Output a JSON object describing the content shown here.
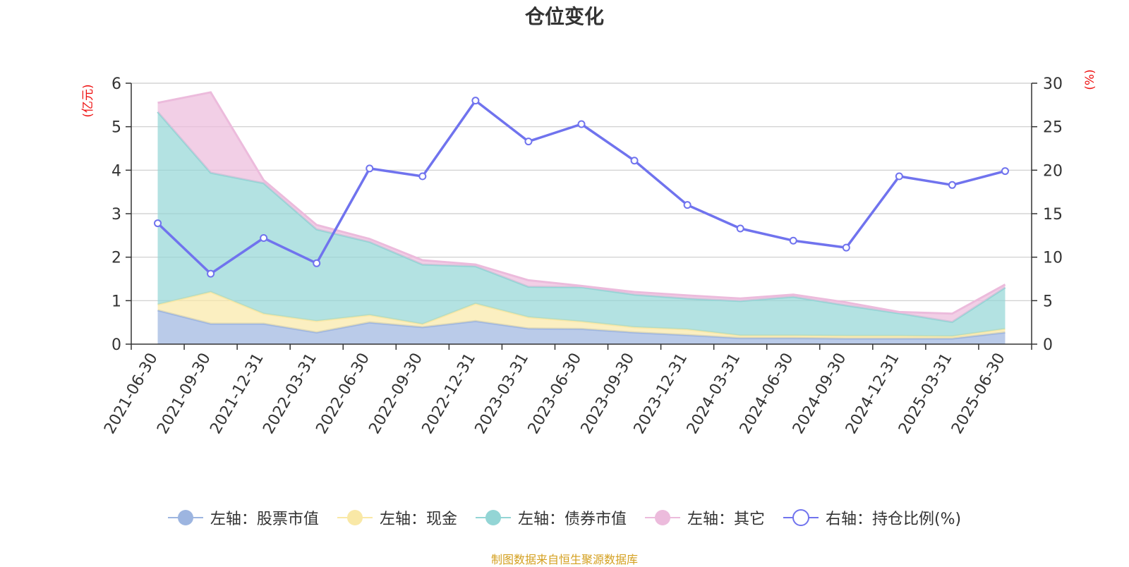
{
  "chart_data": {
    "type": "area",
    "title": "仓位变化",
    "categories": [
      "2021-06-30",
      "2021-09-30",
      "2021-12-31",
      "2022-03-31",
      "2022-06-30",
      "2022-09-30",
      "2022-12-31",
      "2023-03-31",
      "2023-06-30",
      "2023-09-30",
      "2023-12-31",
      "2024-03-31",
      "2024-06-30",
      "2024-09-30",
      "2024-12-31",
      "2025-03-31",
      "2025-06-30"
    ],
    "left_axis": {
      "unit": "(亿元)",
      "ylim": [
        0,
        6
      ],
      "ticks": [
        "0",
        "1",
        "2",
        "3",
        "4",
        "5",
        "6"
      ]
    },
    "right_axis": {
      "unit": "(%)",
      "ylim": [
        0,
        30
      ],
      "ticks": [
        "0",
        "5",
        "10",
        "15",
        "20",
        "25",
        "30"
      ]
    },
    "stacked": true,
    "grid": true,
    "legend_position": "bottom",
    "series": [
      {
        "name": "左轴：股票市值",
        "axis": "left",
        "type": "area",
        "color": "#9db5e0",
        "values": [
          0.78,
          0.47,
          0.47,
          0.27,
          0.5,
          0.39,
          0.53,
          0.36,
          0.35,
          0.27,
          0.21,
          0.14,
          0.14,
          0.13,
          0.13,
          0.13,
          0.27
        ]
      },
      {
        "name": "左轴：现金",
        "axis": "left",
        "type": "area",
        "color": "#f9e8a6",
        "values": [
          0.13,
          0.73,
          0.23,
          0.26,
          0.17,
          0.07,
          0.4,
          0.26,
          0.17,
          0.12,
          0.13,
          0.06,
          0.06,
          0.06,
          0.06,
          0.05,
          0.08
        ]
      },
      {
        "name": "左轴：债券市值",
        "axis": "left",
        "type": "area",
        "color": "#93d5d5",
        "values": [
          4.43,
          2.74,
          3.0,
          2.11,
          1.68,
          1.37,
          0.86,
          0.7,
          0.79,
          0.75,
          0.71,
          0.79,
          0.89,
          0.7,
          0.52,
          0.33,
          0.95
        ]
      },
      {
        "name": "左轴：其它",
        "axis": "left",
        "type": "area",
        "color": "#ecbbdc",
        "values": [
          0.21,
          1.85,
          0.07,
          0.1,
          0.07,
          0.1,
          0.04,
          0.15,
          0.03,
          0.06,
          0.07,
          0.06,
          0.05,
          0.07,
          0.03,
          0.19,
          0.07
        ]
      },
      {
        "name": "右轴：持仓比例(%)",
        "axis": "right",
        "type": "line",
        "color": "#7073ee",
        "values": [
          13.9,
          8.1,
          12.2,
          9.3,
          20.2,
          19.3,
          28.0,
          23.3,
          25.3,
          21.1,
          16.0,
          13.3,
          11.9,
          11.1,
          19.3,
          18.3,
          19.9
        ]
      }
    ]
  },
  "source_note": "制图数据来自恒生聚源数据库"
}
